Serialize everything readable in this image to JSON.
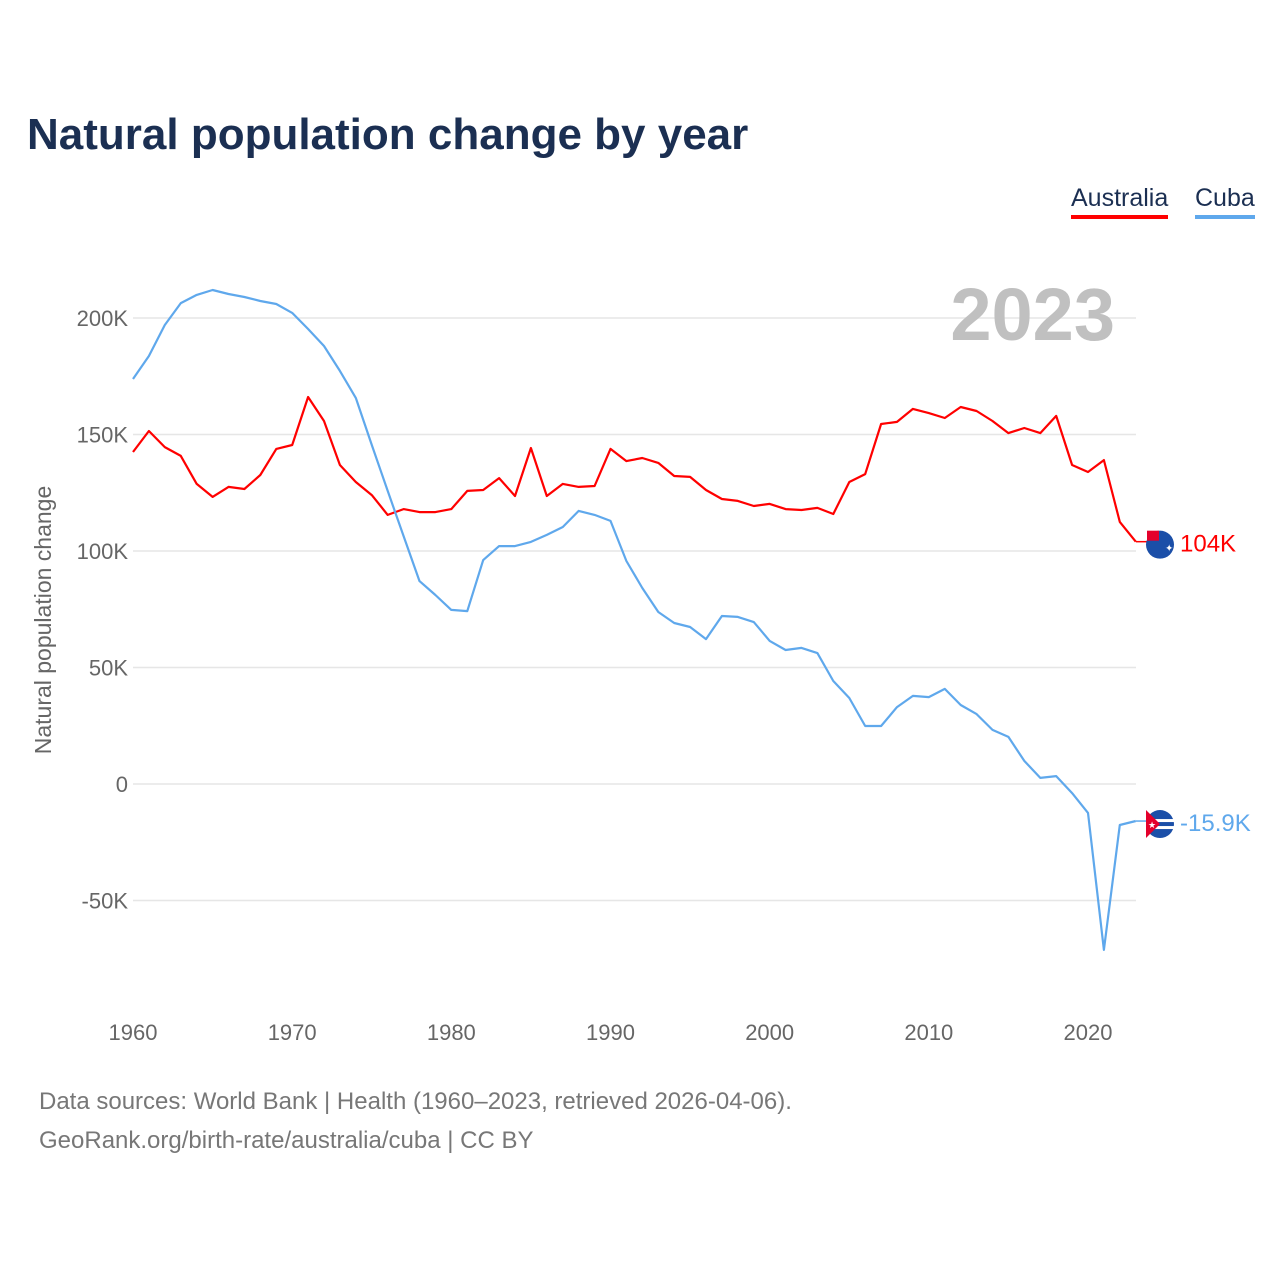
{
  "title": "Natural population change by year",
  "year_label": "2023",
  "legend": [
    {
      "label": "Australia",
      "color": "#ff0000"
    },
    {
      "label": "Cuba",
      "color": "#5fa8ec"
    }
  ],
  "end_labels": {
    "australia": "104K",
    "cuba": "-15.9K"
  },
  "footer": {
    "line1": "Data sources: World Bank | Health (1960–2023, retrieved 2026-04-06).",
    "line2": "GeoRank.org/birth-rate/australia/cuba | CC BY"
  },
  "chart_data": {
    "type": "line",
    "title": "Natural population change by year",
    "xlabel": "",
    "ylabel": "Natural population change",
    "xlim": [
      1960,
      2023
    ],
    "ylim": [
      -80000,
      220000
    ],
    "x_ticks": [
      1960,
      1970,
      1980,
      1990,
      2000,
      2010,
      2020
    ],
    "y_ticks": [
      -50000,
      0,
      50000,
      100000,
      150000,
      200000
    ],
    "y_tick_labels": [
      "-50K",
      "0",
      "50K",
      "100K",
      "150K",
      "200K"
    ],
    "grid": true,
    "legend_position": "top-right",
    "x": [
      1960,
      1961,
      1962,
      1963,
      1964,
      1965,
      1966,
      1967,
      1968,
      1969,
      1970,
      1971,
      1972,
      1973,
      1974,
      1975,
      1976,
      1977,
      1978,
      1979,
      1980,
      1981,
      1982,
      1983,
      1984,
      1985,
      1986,
      1987,
      1988,
      1989,
      1990,
      1991,
      1992,
      1993,
      1994,
      1995,
      1996,
      1997,
      1998,
      1999,
      2000,
      2001,
      2002,
      2003,
      2004,
      2005,
      2006,
      2007,
      2008,
      2009,
      2010,
      2011,
      2012,
      2013,
      2014,
      2015,
      2016,
      2017,
      2018,
      2019,
      2020,
      2021,
      2022,
      2023
    ],
    "series": [
      {
        "name": "Australia",
        "color": "#ff0000",
        "values": [
          142500,
          151500,
          144600,
          140800,
          128800,
          123200,
          127500,
          126600,
          132600,
          143800,
          145500,
          166100,
          155800,
          136900,
          129600,
          124000,
          115500,
          118000,
          116700,
          116700,
          118000,
          125800,
          126200,
          131300,
          123600,
          144200,
          123600,
          128800,
          127500,
          127900,
          143800,
          138600,
          139900,
          137800,
          132200,
          131800,
          126200,
          122300,
          121500,
          119300,
          120200,
          118000,
          117600,
          118500,
          115900,
          129600,
          133000,
          154500,
          155400,
          161000,
          159200,
          157100,
          161800,
          160100,
          155800,
          150600,
          152800,
          150600,
          158000,
          136900,
          133900,
          139000,
          112500,
          104000
        ]
      },
      {
        "name": "Cuba",
        "color": "#5fa8ec",
        "values": [
          173800,
          183700,
          197000,
          206400,
          209900,
          212000,
          210300,
          209000,
          207300,
          206000,
          202200,
          195300,
          188000,
          177300,
          165700,
          145500,
          125800,
          106400,
          87100,
          81100,
          74700,
          74200,
          96100,
          102100,
          102100,
          103900,
          106900,
          110300,
          117200,
          115500,
          112900,
          95700,
          84100,
          73800,
          69100,
          67400,
          62200,
          72100,
          71700,
          69500,
          61400,
          57500,
          58400,
          56200,
          44200,
          36900,
          24900,
          24900,
          33000,
          37800,
          37300,
          40800,
          33900,
          30000,
          23200,
          20200,
          9900,
          2600,
          3400,
          -3900,
          -12400,
          -71200,
          -17600,
          -15900
        ]
      }
    ]
  }
}
